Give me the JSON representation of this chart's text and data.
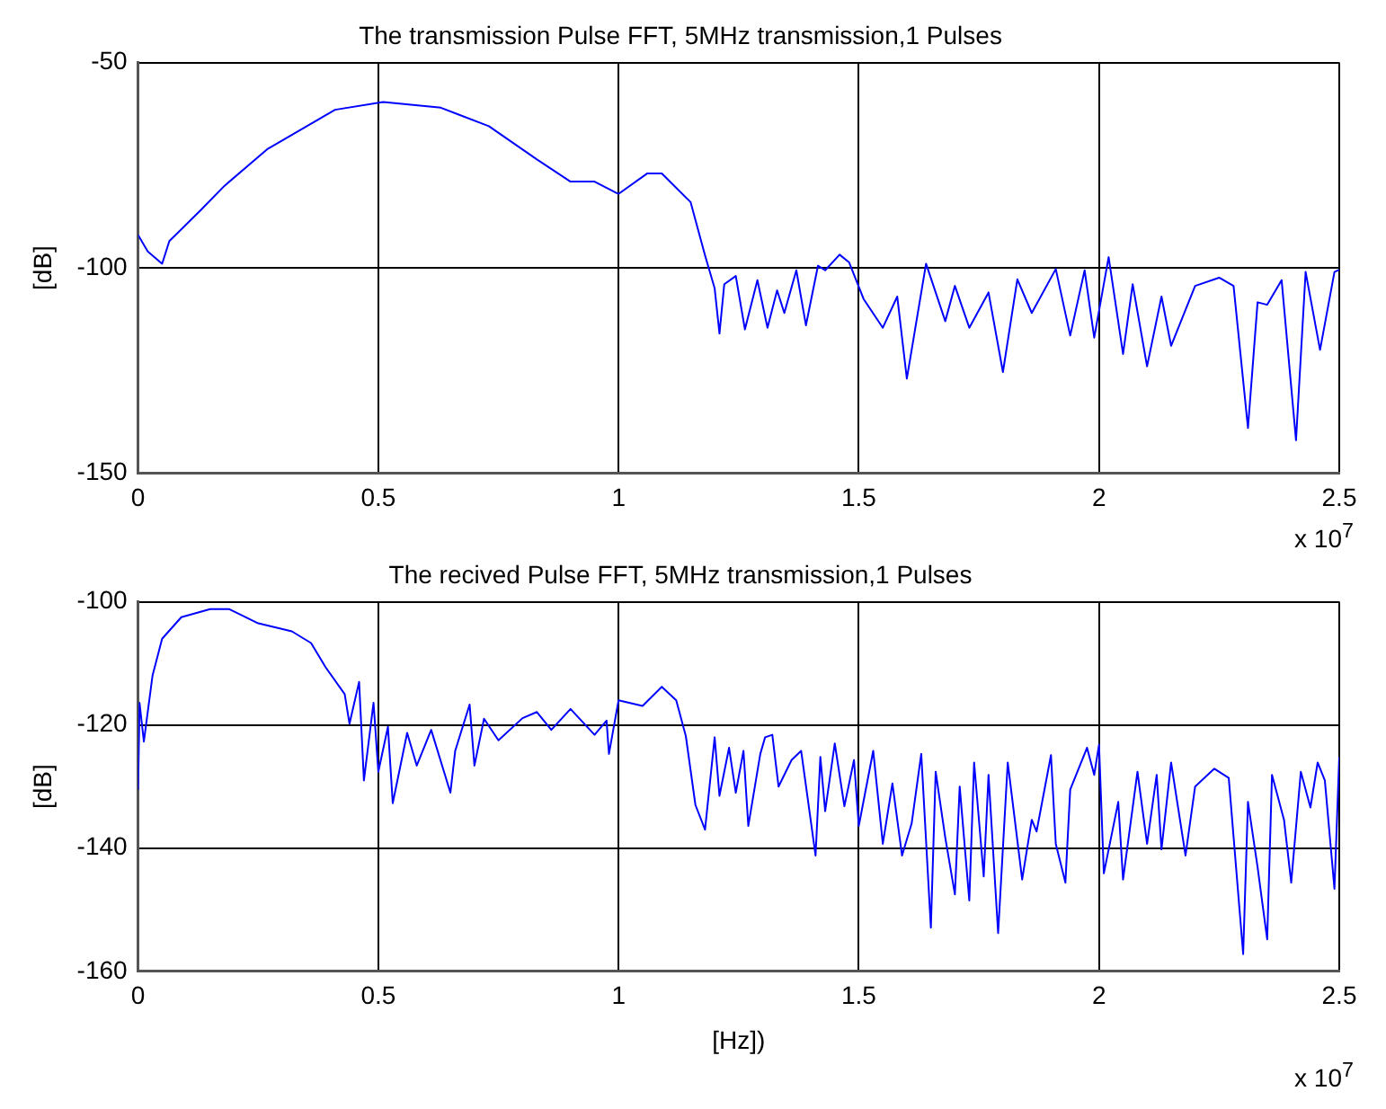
{
  "chart_data": [
    {
      "type": "line",
      "title": "The transmission Pulse FFT, 5MHz transmission,1 Pulses",
      "ylabel": "[dB]",
      "annotations": [
        "x 10$^{7}$"
      ],
      "color": "#0000ff",
      "marker": "none",
      "grid": true,
      "xlim": [
        0,
        2.5
      ],
      "xticks": [
        0,
        0.5,
        1,
        1.5,
        2,
        2.5
      ],
      "ylim": [
        -150,
        -50
      ],
      "yticks": [
        -150,
        -100,
        -50
      ],
      "x": [
        0,
        0.02,
        0.05,
        0.065,
        0.13,
        0.18,
        0.27,
        0.41,
        0.51,
        0.63,
        0.73,
        0.83,
        0.9,
        0.95,
        1.0,
        1.06,
        1.09,
        1.15,
        1.18,
        1.2,
        1.21,
        1.22,
        1.244,
        1.263,
        1.289,
        1.31,
        1.33,
        1.345,
        1.37,
        1.39,
        1.415,
        1.43,
        1.46,
        1.48,
        1.51,
        1.55,
        1.58,
        1.6,
        1.64,
        1.68,
        1.7,
        1.73,
        1.77,
        1.8,
        1.83,
        1.86,
        1.91,
        1.94,
        1.97,
        1.99,
        2.02,
        2.05,
        2.07,
        2.1,
        2.13,
        2.15,
        2.2,
        2.25,
        2.28,
        2.31,
        2.33,
        2.35,
        2.38,
        2.41,
        2.43,
        2.46,
        2.49,
        2.5
      ],
      "values": [
        -92,
        -96,
        -99,
        -93.5,
        -86,
        -80,
        -71,
        -61.5,
        -59.6,
        -61,
        -65.5,
        -73.6,
        -79,
        -79,
        -82,
        -77,
        -77,
        -84,
        -97,
        -105,
        -116,
        -104,
        -102,
        -115,
        -103,
        -114.6,
        -105.5,
        -111,
        -100.6,
        -114,
        -99.5,
        -100.6,
        -96.8,
        -98.7,
        -107.6,
        -114.6,
        -107,
        -127,
        -99,
        -113,
        -104.4,
        -114.6,
        -106,
        -125.4,
        -102.8,
        -111,
        -100.3,
        -116.5,
        -100.6,
        -117,
        -97.4,
        -121,
        -104,
        -124,
        -107,
        -119,
        -104.4,
        -102.4,
        -104.4,
        -139,
        -108.4,
        -109,
        -103,
        -142,
        -101,
        -120,
        -101,
        -100.5
      ]
    },
    {
      "type": "line",
      "title": "The recived Pulse FFT, 5MHz transmission,1 Pulses",
      "xlabel": "[Hz])",
      "ylabel": "[dB]",
      "annotations": [
        "x 10$^{7}$"
      ],
      "color": "#0000ff",
      "marker": "none",
      "grid": true,
      "xlim": [
        0,
        2.5
      ],
      "xticks": [
        0,
        0.5,
        1,
        1.5,
        2,
        2.5
      ],
      "ylim": [
        -160,
        -100
      ],
      "yticks": [
        -160,
        -140,
        -120,
        -100
      ],
      "x": [
        0,
        0.003,
        0.012,
        0.03,
        0.05,
        0.09,
        0.15,
        0.19,
        0.25,
        0.32,
        0.36,
        0.39,
        0.43,
        0.44,
        0.46,
        0.47,
        0.49,
        0.5,
        0.52,
        0.53,
        0.56,
        0.58,
        0.61,
        0.65,
        0.66,
        0.69,
        0.7,
        0.72,
        0.75,
        0.8,
        0.83,
        0.86,
        0.9,
        0.95,
        0.975,
        0.98,
        1.0,
        1.05,
        1.09,
        1.12,
        1.14,
        1.16,
        1.18,
        1.2,
        1.21,
        1.23,
        1.244,
        1.26,
        1.27,
        1.295,
        1.305,
        1.32,
        1.333,
        1.36,
        1.38,
        1.41,
        1.42,
        1.43,
        1.45,
        1.47,
        1.49,
        1.5,
        1.53,
        1.55,
        1.57,
        1.59,
        1.61,
        1.63,
        1.65,
        1.66,
        1.68,
        1.7,
        1.71,
        1.73,
        1.74,
        1.76,
        1.77,
        1.79,
        1.81,
        1.84,
        1.86,
        1.87,
        1.9,
        1.91,
        1.93,
        1.94,
        1.975,
        1.99,
        2.0,
        2.01,
        2.04,
        2.05,
        2.08,
        2.1,
        2.12,
        2.13,
        2.15,
        2.18,
        2.2,
        2.24,
        2.27,
        2.3,
        2.31,
        2.33,
        2.35,
        2.36,
        2.385,
        2.4,
        2.42,
        2.44,
        2.455,
        2.47,
        2.49,
        2.5
      ],
      "values": [
        -130.5,
        -116.4,
        -122.7,
        -112,
        -106,
        -102.5,
        -101.2,
        -101.2,
        -103.5,
        -104.8,
        -106.7,
        -110.6,
        -115,
        -119.8,
        -113,
        -129,
        -116.4,
        -127.6,
        -120.3,
        -132.7,
        -121.3,
        -126.6,
        -120.8,
        -131,
        -124.2,
        -116.7,
        -126.6,
        -119,
        -122.5,
        -118.9,
        -117.9,
        -120.8,
        -117.4,
        -121.6,
        -119.3,
        -124.7,
        -116,
        -116.9,
        -113.8,
        -116,
        -121.8,
        -133,
        -137,
        -122,
        -131.5,
        -123.7,
        -131,
        -124.2,
        -136.4,
        -124.7,
        -122,
        -121.6,
        -130,
        -125.7,
        -124.2,
        -141.2,
        -125.2,
        -134,
        -123,
        -133.2,
        -125.7,
        -136.4,
        -124.2,
        -139.3,
        -129.5,
        -141.2,
        -136,
        -124.7,
        -152.9,
        -127.6,
        -138.3,
        -147.5,
        -130,
        -148.5,
        -126.1,
        -144.6,
        -128.1,
        -153.8,
        -126.1,
        -145.1,
        -135.4,
        -137.3,
        -124.9,
        -139.3,
        -145.6,
        -130.5,
        -123.7,
        -128.1,
        -123.2,
        -144.1,
        -132.5,
        -145.1,
        -127.6,
        -139.3,
        -128.1,
        -140.2,
        -126.1,
        -141.2,
        -130,
        -127.1,
        -128.6,
        -157.2,
        -132.5,
        -143.1,
        -154.8,
        -128.1,
        -135.4,
        -145.6,
        -127.6,
        -133.4,
        -126.1,
        -129,
        -146.6,
        -125.2
      ]
    }
  ]
}
